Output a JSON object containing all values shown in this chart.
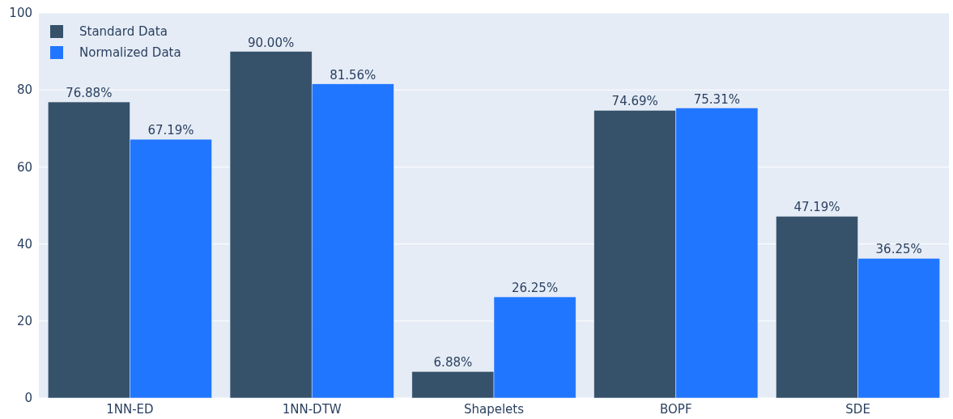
{
  "chart_data": {
    "type": "bar",
    "categories": [
      "1NN-ED",
      "1NN-DTW",
      "Shapelets",
      "BOPF",
      "SDE"
    ],
    "series": [
      {
        "name": "Standard Data",
        "color": "#36526a",
        "values": [
          76.88,
          90.0,
          6.88,
          74.69,
          47.19
        ],
        "value_labels": [
          "76.88%",
          "90.00%",
          "6.88%",
          "74.69%",
          "47.19%"
        ]
      },
      {
        "name": "Normalized Data",
        "color": "#2176ff",
        "values": [
          67.19,
          81.56,
          26.25,
          75.31,
          36.25
        ],
        "value_labels": [
          "67.19%",
          "81.56%",
          "26.25%",
          "75.31%",
          "36.25%"
        ]
      }
    ],
    "ylim": [
      0,
      100
    ],
    "yticks": [
      0,
      20,
      40,
      60,
      80,
      100
    ],
    "grid": "y",
    "legend": "top left"
  }
}
